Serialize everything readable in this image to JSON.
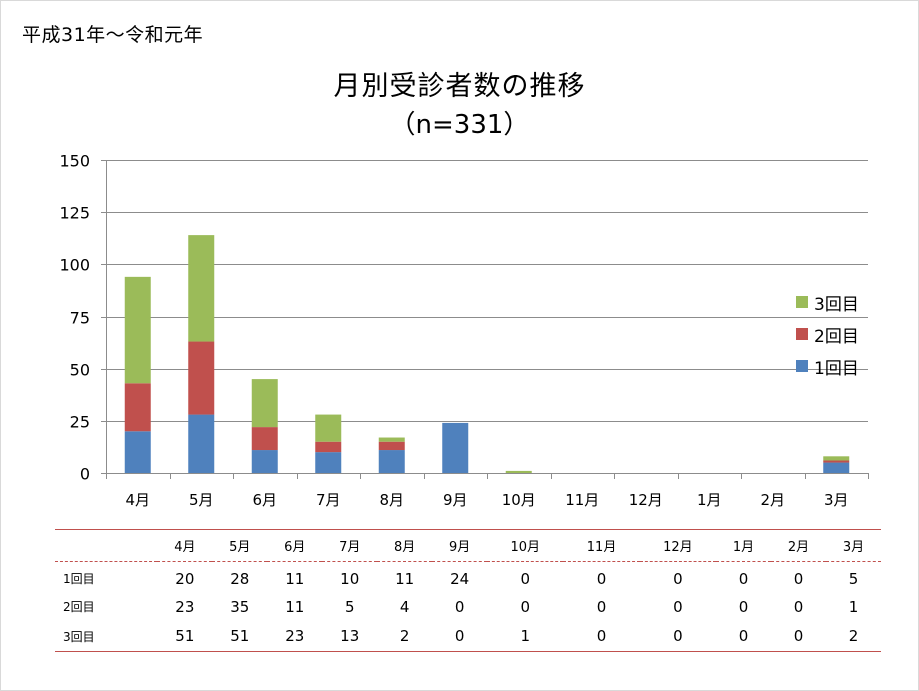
{
  "page": {
    "era_label": "平成31年～令和元年"
  },
  "chart_data": {
    "type": "bar",
    "stacked": true,
    "title": "月別受診者数の推移",
    "subtitle": "（n=331）",
    "categories": [
      "4月",
      "5月",
      "6月",
      "7月",
      "8月",
      "9月",
      "10月",
      "11月",
      "12月",
      "1月",
      "2月",
      "3月"
    ],
    "series": [
      {
        "name": "1回目",
        "color": "#4f81bd",
        "values": [
          20,
          28,
          11,
          10,
          11,
          24,
          0,
          0,
          0,
          0,
          0,
          5
        ]
      },
      {
        "name": "2回目",
        "color": "#c0504d",
        "values": [
          23,
          35,
          11,
          5,
          4,
          0,
          0,
          0,
          0,
          0,
          0,
          1
        ]
      },
      {
        "name": "3回目",
        "color": "#9bbb59",
        "values": [
          51,
          51,
          23,
          13,
          2,
          0,
          1,
          0,
          0,
          0,
          0,
          2
        ]
      }
    ],
    "ylim": [
      0,
      150
    ],
    "yticks": [
      0,
      25,
      50,
      75,
      100,
      125,
      150
    ],
    "grid": true,
    "legend_position": "right"
  },
  "table": {
    "rows": [
      {
        "label": "1回目",
        "values": [
          "20",
          "28",
          "11",
          "10",
          "11",
          "24",
          "0",
          "0",
          "0",
          "0",
          "0",
          "5"
        ]
      },
      {
        "label": "2回目",
        "values": [
          "23",
          "35",
          "11",
          "5",
          "4",
          "0",
          "0",
          "0",
          "0",
          "0",
          "0",
          "1"
        ]
      },
      {
        "label": "3回目",
        "values": [
          "51",
          "51",
          "23",
          "13",
          "2",
          "0",
          "1",
          "0",
          "0",
          "0",
          "0",
          "2"
        ]
      }
    ]
  }
}
